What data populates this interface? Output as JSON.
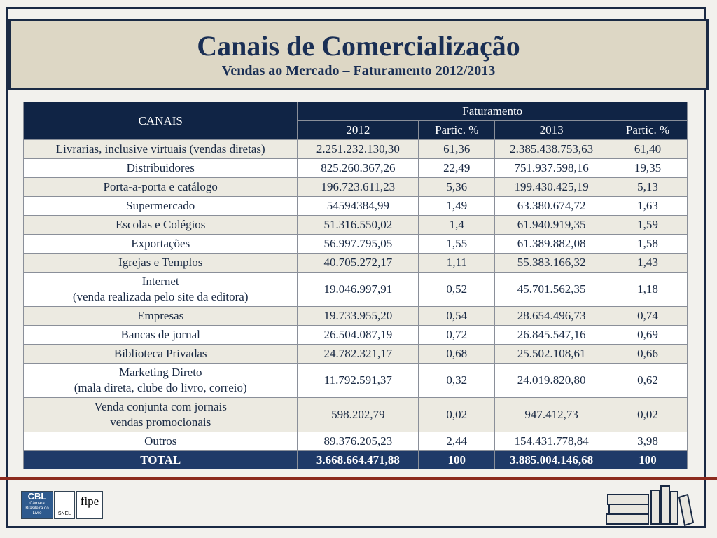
{
  "header": {
    "title": "Canais de Comercialização",
    "subtitle": "Vendas ao Mercado – Faturamento 2012/2013"
  },
  "table": {
    "head": {
      "canais": "CANAIS",
      "group": "Faturamento",
      "columns": [
        "2012",
        "Partic. %",
        "2013",
        "Partic. %"
      ]
    },
    "rows": [
      [
        [
          "Livrarias, inclusive virtuais (vendas diretas)"
        ],
        "2.251.232.130,30",
        "61,36",
        "2.385.438.753,63",
        "61,40"
      ],
      [
        [
          "Distribuidores"
        ],
        "825.260.367,26",
        "22,49",
        "751.937.598,16",
        "19,35"
      ],
      [
        [
          "Porta-a-porta e catálogo"
        ],
        "196.723.611,23",
        "5,36",
        "199.430.425,19",
        "5,13"
      ],
      [
        [
          "Supermercado"
        ],
        "54594384,99",
        "1,49",
        "63.380.674,72",
        "1,63"
      ],
      [
        [
          "Escolas e Colégios"
        ],
        "51.316.550,02",
        "1,4",
        "61.940.919,35",
        "1,59"
      ],
      [
        [
          "Exportações"
        ],
        "56.997.795,05",
        "1,55",
        "61.389.882,08",
        "1,58"
      ],
      [
        [
          "Igrejas e Templos"
        ],
        "40.705.272,17",
        "1,11",
        "55.383.166,32",
        "1,43"
      ],
      [
        [
          "Internet",
          "(venda realizada pelo site da editora)"
        ],
        "19.046.997,91",
        "0,52",
        "45.701.562,35",
        "1,18"
      ],
      [
        [
          "Empresas"
        ],
        "19.733.955,20",
        "0,54",
        "28.654.496,73",
        "0,74"
      ],
      [
        [
          "Bancas de jornal"
        ],
        "26.504.087,19",
        "0,72",
        "26.845.547,16",
        "0,69"
      ],
      [
        [
          "Biblioteca Privadas"
        ],
        "24.782.321,17",
        "0,68",
        "25.502.108,61",
        "0,66"
      ],
      [
        [
          "Marketing Direto",
          "(mala direta, clube do livro, correio)"
        ],
        "11.792.591,37",
        "0,32",
        "24.019.820,80",
        "0,62"
      ],
      [
        [
          "Venda conjunta com jornais",
          "vendas promocionais"
        ],
        "598.202,79",
        "0,02",
        "947.412,73",
        "0,02"
      ],
      [
        [
          "Outros"
        ],
        "89.376.205,23",
        "2,44",
        "154.431.778,84",
        "3,98"
      ]
    ],
    "total": [
      "TOTAL",
      "3.668.664.471,88",
      "100",
      "3.885.004.146,68",
      "100"
    ]
  },
  "footer": {
    "logos": [
      "CBL",
      "Câmara Brasileira do Livro",
      "SNEL",
      "fipe"
    ]
  }
}
